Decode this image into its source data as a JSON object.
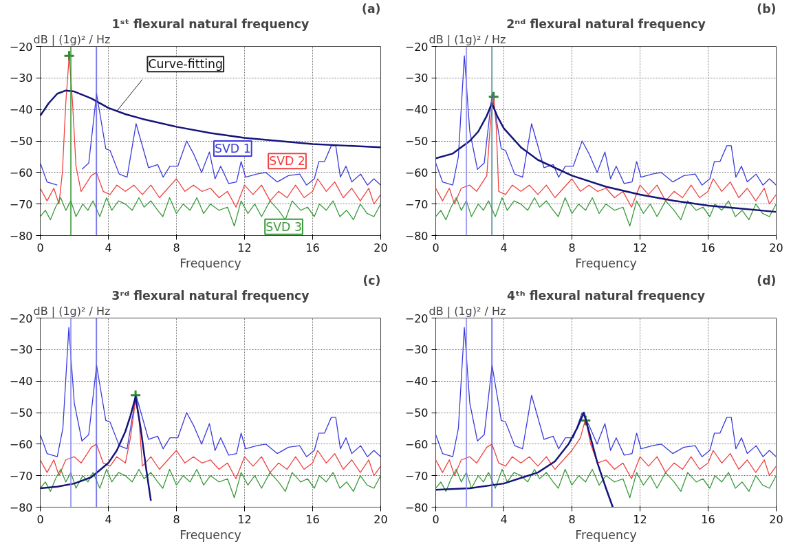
{
  "chart_data": [
    {
      "type": "line",
      "title": "1ˢᵗ flexural natural frequency",
      "annotations": [
        "(a)"
      ],
      "xlabel": "Frequency",
      "ylabel": "dB | (1g)² / Hz",
      "xlim": [
        0,
        20
      ],
      "ylim": [
        -80,
        -20
      ],
      "xticks": [
        0,
        4,
        8,
        12,
        16,
        20
      ],
      "yticks": [
        -80,
        -70,
        -60,
        -50,
        -40,
        -30,
        -20
      ],
      "grid": true,
      "legend": false,
      "ref_lines": [
        {
          "axis": "x",
          "value": 1.8,
          "color": "#3a9a3a"
        },
        {
          "axis": "x",
          "value": 3.3,
          "color": "#5a5ae6"
        }
      ],
      "series": [
        {
          "name": "SVD 1",
          "color": "#3b3bdc",
          "x": [
            0,
            0.4,
            1.0,
            1.33,
            1.68,
            2.0,
            2.45,
            2.85,
            3.31,
            3.85,
            4.1,
            4.64,
            5.1,
            5.63,
            6.1,
            6.36,
            6.9,
            7.22,
            7.62,
            8.08,
            8.6,
            9.0,
            9.48,
            9.94,
            10.27,
            10.6,
            11.07,
            11.53,
            11.8,
            12.06,
            12.72,
            13.25,
            13.92,
            14.58,
            15.24,
            15.64,
            16.1,
            16.37,
            16.7,
            17.1,
            17.36,
            17.63,
            17.96,
            18.3,
            18.82,
            19.22,
            19.6,
            20
          ],
          "values": [
            -57,
            -63,
            -64,
            null,
            null,
            null,
            -59,
            -57,
            -35,
            -52.5,
            -53,
            -60.5,
            -61.5,
            -44.5,
            -53.5,
            -58.5,
            -57.5,
            -61.5,
            -58,
            -58,
            -50,
            -54,
            -60,
            -53.5,
            -62,
            -58,
            -63.5,
            -63,
            -56.5,
            -61.5,
            -60.5,
            -60,
            -63,
            -61,
            -60.5,
            -64,
            -62,
            -56.5,
            -56.5,
            -51.5,
            -51.5,
            -61.5,
            -58,
            -63,
            -60.5,
            -64,
            -62,
            -64
          ]
        },
        {
          "name": "SVD 2",
          "color": "#f04040",
          "x": [
            0,
            0.4,
            0.8,
            1.1,
            1.3,
            1.5,
            1.7,
            1.9,
            2.1,
            2.4,
            3.0,
            3.3,
            3.7,
            4.1,
            4.5,
            5.0,
            5.5,
            6.0,
            6.5,
            7.0,
            7.5,
            8.0,
            8.5,
            9.0,
            9.5,
            10.0,
            10.5,
            11.0,
            11.5,
            12.0,
            12.5,
            13.0,
            13.5,
            14.0,
            14.5,
            15.0,
            15.5,
            16.0,
            16.3,
            16.8,
            17.3,
            17.8,
            18.3,
            18.8,
            19.3,
            19.6,
            20
          ],
          "values": [
            -65,
            -69,
            -65,
            -70,
            -60,
            -38,
            -23,
            -38,
            -58,
            -66,
            -61,
            -60,
            -66,
            -67,
            -64,
            -66,
            -64,
            -67,
            -64,
            -68,
            -65,
            -62,
            -66,
            -64,
            -66,
            -65,
            -68,
            -66,
            -71,
            -64,
            -67,
            -64,
            -69,
            -66,
            -68,
            -64,
            -68,
            -66,
            -62,
            -66,
            -63,
            -68,
            -65,
            -69,
            -65,
            -70,
            -67
          ]
        },
        {
          "name": "SVD 3",
          "color": "#3a9a3a",
          "x": [
            0,
            0.3,
            0.6,
            0.9,
            1.2,
            1.5,
            1.8,
            2.1,
            2.5,
            2.8,
            3.1,
            3.5,
            3.9,
            4.2,
            4.6,
            5.0,
            5.4,
            5.8,
            6.1,
            6.5,
            6.9,
            7.2,
            7.6,
            8.0,
            8.4,
            8.8,
            9.2,
            9.6,
            10.0,
            10.5,
            11.0,
            11.4,
            11.8,
            12.2,
            12.6,
            13.0,
            13.5,
            14.0,
            14.4,
            14.8,
            15.3,
            15.7,
            16.1,
            16.4,
            16.8,
            17.2,
            17.6,
            18.0,
            18.4,
            18.8,
            19.2,
            19.6,
            20
          ],
          "values": [
            -74,
            -72,
            -75,
            -71,
            -68,
            -72,
            -69,
            -74,
            -70,
            -72,
            -69,
            -74,
            -68,
            -72,
            -69,
            -70,
            -72,
            -68,
            -71,
            -69,
            -72,
            -74,
            -68,
            -73,
            -70,
            -72,
            -68,
            -73,
            -70,
            -72,
            -71,
            -77,
            -69,
            -73,
            -70,
            -74,
            -69,
            -72,
            -75,
            -69,
            -72,
            -71,
            -74,
            -70,
            -72,
            -69,
            -74,
            -72,
            -75,
            -70,
            -73,
            -74,
            -70
          ]
        },
        {
          "name": "Curve-fitting",
          "color": "#14147a",
          "x": [
            0,
            0.5,
            1,
            1.5,
            2,
            3,
            4,
            5,
            6,
            8,
            10,
            12,
            14,
            16,
            18,
            20
          ],
          "values": [
            -42,
            -38,
            -35,
            -34,
            -34.3,
            -36.5,
            -39.5,
            -41.5,
            -43,
            -45.5,
            -47.5,
            -49,
            -50,
            -51,
            -51.5,
            -52
          ]
        },
        {
          "type": "scatter",
          "marker": "cross",
          "color": "#2a8a2a",
          "x": [
            1.7
          ],
          "values": [
            -23
          ]
        }
      ]
    },
    {
      "type": "line",
      "title": "2ⁿᵈ flexural natural frequency",
      "annotations": [
        "(b)"
      ],
      "xlabel": "Frequency",
      "ylabel": "dB | (1g)² / Hz",
      "xlim": [
        0,
        20
      ],
      "ylim": [
        -80,
        -20
      ],
      "xticks": [
        0,
        4,
        8,
        12,
        16,
        20
      ],
      "yticks": [
        -80,
        -70,
        -60,
        -50,
        -40,
        -30,
        -20
      ],
      "grid": true,
      "legend": false,
      "ref_lines": [
        {
          "axis": "x",
          "value": 1.8,
          "color": "#8a8af0"
        },
        {
          "axis": "x",
          "value": 3.3,
          "color": "#4a8a8a"
        }
      ],
      "series": [
        {
          "color": "#3b3bdc",
          "x": [
            0,
            0.4,
            1.0,
            1.33,
            1.68,
            2.0,
            2.45,
            2.85,
            3.31,
            3.85,
            4.1,
            4.64,
            5.1,
            5.63,
            6.1,
            6.36,
            6.9,
            7.22,
            7.62,
            8.08,
            8.6,
            9.0,
            9.48,
            9.94,
            10.27,
            10.6,
            11.07,
            11.53,
            11.8,
            12.06,
            12.72,
            13.25,
            13.92,
            14.58,
            15.24,
            15.64,
            16.1,
            16.37,
            16.7,
            17.1,
            17.36,
            17.63,
            17.96,
            18.3,
            18.82,
            19.22,
            19.6,
            20
          ],
          "values": [
            -57,
            -63,
            -64,
            -55,
            -23,
            -47,
            -59,
            -57,
            -35,
            -52.5,
            -53,
            -60.5,
            -61.5,
            -44.5,
            -53.5,
            -58.5,
            -57.5,
            -61.5,
            -58,
            -58,
            -50,
            -54,
            -60,
            -53.5,
            -62,
            -58,
            -63.5,
            -63,
            -56.5,
            -61.5,
            -60.5,
            -60,
            -63,
            -61,
            -60.5,
            -64,
            -62,
            -56.5,
            -56.5,
            -51.5,
            -51.5,
            -61.5,
            -58,
            -63,
            -60.5,
            -64,
            -62,
            -64
          ]
        },
        {
          "color": "#f04040",
          "x": [
            0,
            0.4,
            0.8,
            1.1,
            1.5,
            2.0,
            2.4,
            3.0,
            3.2,
            3.4,
            3.55,
            3.7,
            4.1,
            4.5,
            5.0,
            5.5,
            6.0,
            6.5,
            7.0,
            7.5,
            8.0,
            8.5,
            9.0,
            9.5,
            10.0,
            10.5,
            11.0,
            11.5,
            12.0,
            12.5,
            13.0,
            13.5,
            14.0,
            14.5,
            15.0,
            15.5,
            16.0,
            16.3,
            16.8,
            17.3,
            17.8,
            18.3,
            18.8,
            19.3,
            19.6,
            20
          ],
          "values": [
            -65,
            -69,
            -65,
            -70,
            -65,
            -64,
            -66,
            -61,
            -45,
            -36,
            -45,
            -66,
            -67,
            -64,
            -66,
            -64,
            -67,
            -64,
            -68,
            -65,
            -62,
            -66,
            -64,
            -66,
            -65,
            -68,
            -66,
            -71,
            -64,
            -67,
            -64,
            -69,
            -66,
            -68,
            -64,
            -68,
            -66,
            -62,
            -66,
            -63,
            -68,
            -65,
            -69,
            -65,
            -70,
            -67
          ]
        },
        {
          "color": "#3a9a3a",
          "x": [
            0,
            0.3,
            0.6,
            0.9,
            1.2,
            1.5,
            1.8,
            2.1,
            2.5,
            2.8,
            3.1,
            3.5,
            3.9,
            4.2,
            4.6,
            5.0,
            5.4,
            5.8,
            6.1,
            6.5,
            6.9,
            7.2,
            7.6,
            8.0,
            8.4,
            8.8,
            9.2,
            9.6,
            10.0,
            10.5,
            11.0,
            11.4,
            11.8,
            12.2,
            12.6,
            13.0,
            13.5,
            14.0,
            14.4,
            14.8,
            15.3,
            15.7,
            16.1,
            16.4,
            16.8,
            17.2,
            17.6,
            18.0,
            18.4,
            18.8,
            19.2,
            19.6,
            20
          ],
          "values": [
            -74,
            -72,
            -75,
            -71,
            -68,
            -72,
            -69,
            -74,
            -70,
            -72,
            -69,
            -74,
            -68,
            -72,
            -69,
            -70,
            -72,
            -68,
            -71,
            -69,
            -72,
            -74,
            -68,
            -73,
            -70,
            -72,
            -68,
            -73,
            -70,
            -72,
            -71,
            -77,
            -69,
            -73,
            -70,
            -74,
            -69,
            -72,
            -75,
            -69,
            -72,
            -71,
            -74,
            -70,
            -72,
            -69,
            -74,
            -72,
            -75,
            -70,
            -73,
            -74,
            -70
          ]
        },
        {
          "color": "#14147a",
          "x": [
            0,
            1,
            2,
            2.5,
            3,
            3.3,
            3.6,
            4,
            5,
            6,
            8,
            10,
            12,
            14,
            16,
            18,
            20
          ],
          "values": [
            -55.5,
            -54,
            -50,
            -47,
            -42,
            -38,
            -42,
            -46,
            -52,
            -56,
            -61,
            -64.5,
            -67,
            -69,
            -70.5,
            -71.5,
            -72.5
          ]
        },
        {
          "type": "scatter",
          "marker": "cross",
          "color": "#2a8a2a",
          "x": [
            3.4
          ],
          "values": [
            -36
          ]
        }
      ]
    },
    {
      "type": "line",
      "title": "3ʳᵈ flexural natural frequency",
      "annotations": [
        "(c)"
      ],
      "xlabel": "Frequency",
      "ylabel": "dB | (1g)² / Hz",
      "xlim": [
        0,
        20
      ],
      "ylim": [
        -80,
        -20
      ],
      "xticks": [
        0,
        4,
        8,
        12,
        16,
        20
      ],
      "yticks": [
        -80,
        -70,
        -60,
        -50,
        -40,
        -30,
        -20
      ],
      "grid": true,
      "legend": false,
      "ref_lines": [
        {
          "axis": "x",
          "value": 1.8,
          "color": "#8a8af0"
        },
        {
          "axis": "x",
          "value": 3.3,
          "color": "#5a5ae6"
        }
      ],
      "series": [
        {
          "color": "#3b3bdc",
          "x": [
            0,
            0.4,
            1.0,
            1.33,
            1.68,
            2.0,
            2.45,
            2.85,
            3.31,
            3.85,
            4.1,
            4.64,
            5.1,
            5.63,
            6.1,
            6.36,
            6.9,
            7.22,
            7.62,
            8.08,
            8.6,
            9.0,
            9.48,
            9.94,
            10.27,
            10.6,
            11.07,
            11.53,
            11.8,
            12.06,
            12.72,
            13.25,
            13.92,
            14.58,
            15.24,
            15.64,
            16.1,
            16.37,
            16.7,
            17.1,
            17.36,
            17.63,
            17.96,
            18.3,
            18.82,
            19.22,
            19.6,
            20
          ],
          "values": [
            -57,
            -63,
            -64,
            -55,
            -23,
            -47,
            -59,
            -57,
            -35,
            -52.5,
            -53,
            -60.5,
            -61.5,
            -44.5,
            -53.5,
            -58.5,
            -57.5,
            -61.5,
            -58,
            -58,
            -50,
            -54,
            -60,
            -53.5,
            -62,
            -58,
            -63.5,
            -63,
            -56.5,
            -61.5,
            -60.5,
            -60,
            -63,
            -61,
            -60.5,
            -64,
            -62,
            -56.5,
            -56.5,
            -51.5,
            -51.5,
            -61.5,
            -58,
            -63,
            -60.5,
            -64,
            -62,
            -64
          ]
        },
        {
          "color": "#f04040",
          "x": [
            0,
            0.4,
            0.8,
            1.1,
            1.5,
            2.0,
            2.4,
            3.0,
            3.3,
            3.7,
            4.1,
            4.5,
            5.0,
            5.3,
            5.6,
            5.8,
            6.0,
            6.5,
            7.0,
            7.5,
            8.0,
            8.5,
            9.0,
            9.5,
            10.0,
            10.5,
            11.0,
            11.5,
            12.0,
            12.5,
            13.0,
            13.5,
            14.0,
            14.5,
            15.0,
            15.5,
            16.0,
            16.3,
            16.8,
            17.3,
            17.8,
            18.3,
            18.8,
            19.3,
            19.6,
            20
          ],
          "values": [
            -65,
            -69,
            -65,
            -70,
            -65,
            -64,
            -66,
            -61,
            -60,
            -66,
            -67,
            -64,
            -66,
            -58,
            -46,
            -52,
            -67,
            -64,
            -68,
            -65,
            -62,
            -66,
            -64,
            -66,
            -65,
            -68,
            -66,
            -71,
            -64,
            -67,
            -64,
            -69,
            -66,
            -68,
            -64,
            -68,
            -66,
            -62,
            -66,
            -63,
            -68,
            -65,
            -69,
            -65,
            -70,
            -67
          ]
        },
        {
          "color": "#3a9a3a",
          "x": [
            0,
            0.3,
            0.6,
            0.9,
            1.2,
            1.5,
            1.8,
            2.1,
            2.5,
            2.8,
            3.1,
            3.5,
            3.9,
            4.2,
            4.6,
            5.0,
            5.4,
            5.8,
            6.1,
            6.5,
            6.9,
            7.2,
            7.6,
            8.0,
            8.4,
            8.8,
            9.2,
            9.6,
            10.0,
            10.5,
            11.0,
            11.4,
            11.8,
            12.2,
            12.6,
            13.0,
            13.5,
            14.0,
            14.4,
            14.8,
            15.3,
            15.7,
            16.1,
            16.4,
            16.8,
            17.2,
            17.6,
            18.0,
            18.4,
            18.8,
            19.2,
            19.6,
            20
          ],
          "values": [
            -74,
            -72,
            -75,
            -71,
            -68,
            -72,
            -69,
            -74,
            -70,
            -72,
            -69,
            -74,
            -68,
            -72,
            -69,
            -70,
            -72,
            -68,
            -71,
            -69,
            -72,
            -74,
            -68,
            -73,
            -70,
            -72,
            -68,
            -73,
            -70,
            -72,
            -71,
            -77,
            -69,
            -73,
            -70,
            -74,
            -69,
            -72,
            -75,
            -69,
            -72,
            -71,
            -74,
            -70,
            -72,
            -69,
            -74,
            -72,
            -75,
            -70,
            -73,
            -74,
            -70
          ]
        },
        {
          "color": "#14147a",
          "x": [
            0,
            1,
            2,
            3,
            4,
            4.5,
            5,
            5.3,
            5.6,
            5.9,
            6.2,
            6.5
          ],
          "values": [
            -74,
            -73.5,
            -72.5,
            -70.5,
            -66,
            -62,
            -56,
            -51,
            -45,
            -55,
            -67,
            -78
          ]
        },
        {
          "type": "scatter",
          "marker": "cross",
          "color": "#2a8a2a",
          "x": [
            5.6
          ],
          "values": [
            -44.5
          ]
        }
      ]
    },
    {
      "type": "line",
      "title": "4ᵗʰ flexural natural frequency",
      "annotations": [
        "(d)"
      ],
      "xlabel": "Frequency",
      "ylabel": "dB | (1g)² / Hz",
      "xlim": [
        0,
        20
      ],
      "ylim": [
        -80,
        -20
      ],
      "xticks": [
        0,
        4,
        8,
        12,
        16,
        20
      ],
      "yticks": [
        -80,
        -70,
        -60,
        -50,
        -40,
        -30,
        -20
      ],
      "grid": true,
      "legend": false,
      "ref_lines": [
        {
          "axis": "x",
          "value": 1.8,
          "color": "#8a8af0"
        },
        {
          "axis": "x",
          "value": 3.3,
          "color": "#5a5ae6"
        }
      ],
      "series": [
        {
          "color": "#3b3bdc",
          "x": [
            0,
            0.4,
            1.0,
            1.33,
            1.68,
            2.0,
            2.45,
            2.85,
            3.31,
            3.85,
            4.1,
            4.64,
            5.1,
            5.63,
            6.1,
            6.36,
            6.9,
            7.22,
            7.62,
            8.08,
            8.6,
            9.0,
            9.48,
            9.94,
            10.27,
            10.6,
            11.07,
            11.53,
            11.8,
            12.06,
            12.72,
            13.25,
            13.92,
            14.58,
            15.24,
            15.64,
            16.1,
            16.37,
            16.7,
            17.1,
            17.36,
            17.63,
            17.96,
            18.3,
            18.82,
            19.22,
            19.6,
            20
          ],
          "values": [
            -57,
            -63,
            -64,
            -55,
            -23,
            -47,
            -59,
            -57,
            -35,
            -52.5,
            -53,
            -60.5,
            -61.5,
            -44.5,
            -53.5,
            -58.5,
            -57.5,
            -61.5,
            -58,
            -58,
            -50,
            -54,
            -60,
            -53.5,
            -62,
            -58,
            -63.5,
            -63,
            -56.5,
            -61.5,
            -60.5,
            -60,
            -63,
            -61,
            -60.5,
            -64,
            -62,
            -56.5,
            -56.5,
            -51.5,
            -51.5,
            -61.5,
            -58,
            -63,
            -60.5,
            -64,
            -62,
            -64
          ]
        },
        {
          "color": "#f04040",
          "x": [
            0,
            0.4,
            0.8,
            1.1,
            1.5,
            2.0,
            2.4,
            3.0,
            3.3,
            3.7,
            4.1,
            4.5,
            5.0,
            5.5,
            6.0,
            6.5,
            7.0,
            7.5,
            8.0,
            8.5,
            8.8,
            9.1,
            9.5,
            10.0,
            10.5,
            11.0,
            11.5,
            12.0,
            12.5,
            13.0,
            13.5,
            14.0,
            14.5,
            15.0,
            15.5,
            16.0,
            16.3,
            16.8,
            17.3,
            17.8,
            18.3,
            18.8,
            19.3,
            19.6,
            20
          ],
          "values": [
            -65,
            -69,
            -65,
            -70,
            -65,
            -64,
            -66,
            -61,
            -60,
            -66,
            -67,
            -64,
            -66,
            -64,
            -67,
            -64,
            -68,
            -65,
            -62,
            -58,
            -52,
            -60,
            -66,
            -65,
            -68,
            -66,
            -71,
            -64,
            -67,
            -64,
            -69,
            -66,
            -68,
            -64,
            -68,
            -66,
            -62,
            -66,
            -63,
            -68,
            -65,
            -69,
            -65,
            -70,
            -67
          ]
        },
        {
          "color": "#3a9a3a",
          "x": [
            0,
            0.3,
            0.6,
            0.9,
            1.2,
            1.5,
            1.8,
            2.1,
            2.5,
            2.8,
            3.1,
            3.5,
            3.9,
            4.2,
            4.6,
            5.0,
            5.4,
            5.8,
            6.1,
            6.5,
            6.9,
            7.2,
            7.6,
            8.0,
            8.4,
            8.8,
            9.2,
            9.6,
            10.0,
            10.5,
            11.0,
            11.4,
            11.8,
            12.2,
            12.6,
            13.0,
            13.5,
            14.0,
            14.4,
            14.8,
            15.3,
            15.7,
            16.1,
            16.4,
            16.8,
            17.2,
            17.6,
            18.0,
            18.4,
            18.8,
            19.2,
            19.6,
            20
          ],
          "values": [
            -74,
            -72,
            -75,
            -71,
            -68,
            -72,
            -69,
            -74,
            -70,
            -72,
            -69,
            -74,
            -68,
            -72,
            -69,
            -70,
            -72,
            -68,
            -71,
            -69,
            -72,
            -74,
            -68,
            -73,
            -70,
            -72,
            -68,
            -73,
            -70,
            -72,
            -71,
            -77,
            -69,
            -73,
            -70,
            -74,
            -69,
            -72,
            -75,
            -69,
            -72,
            -71,
            -74,
            -70,
            -72,
            -69,
            -74,
            -72,
            -75,
            -70,
            -73,
            -74,
            -70
          ]
        },
        {
          "color": "#14147a",
          "x": [
            0,
            2,
            4,
            6,
            7,
            7.8,
            8.3,
            8.7,
            9.0,
            9.5,
            10,
            10.4
          ],
          "values": [
            -74.5,
            -74,
            -72.5,
            -69,
            -65.5,
            -60,
            -55,
            -50,
            -56,
            -66,
            -74,
            -80
          ]
        },
        {
          "type": "scatter",
          "marker": "cross",
          "color": "#2a8a2a",
          "x": [
            8.8
          ],
          "values": [
            -52.5
          ]
        }
      ]
    }
  ]
}
